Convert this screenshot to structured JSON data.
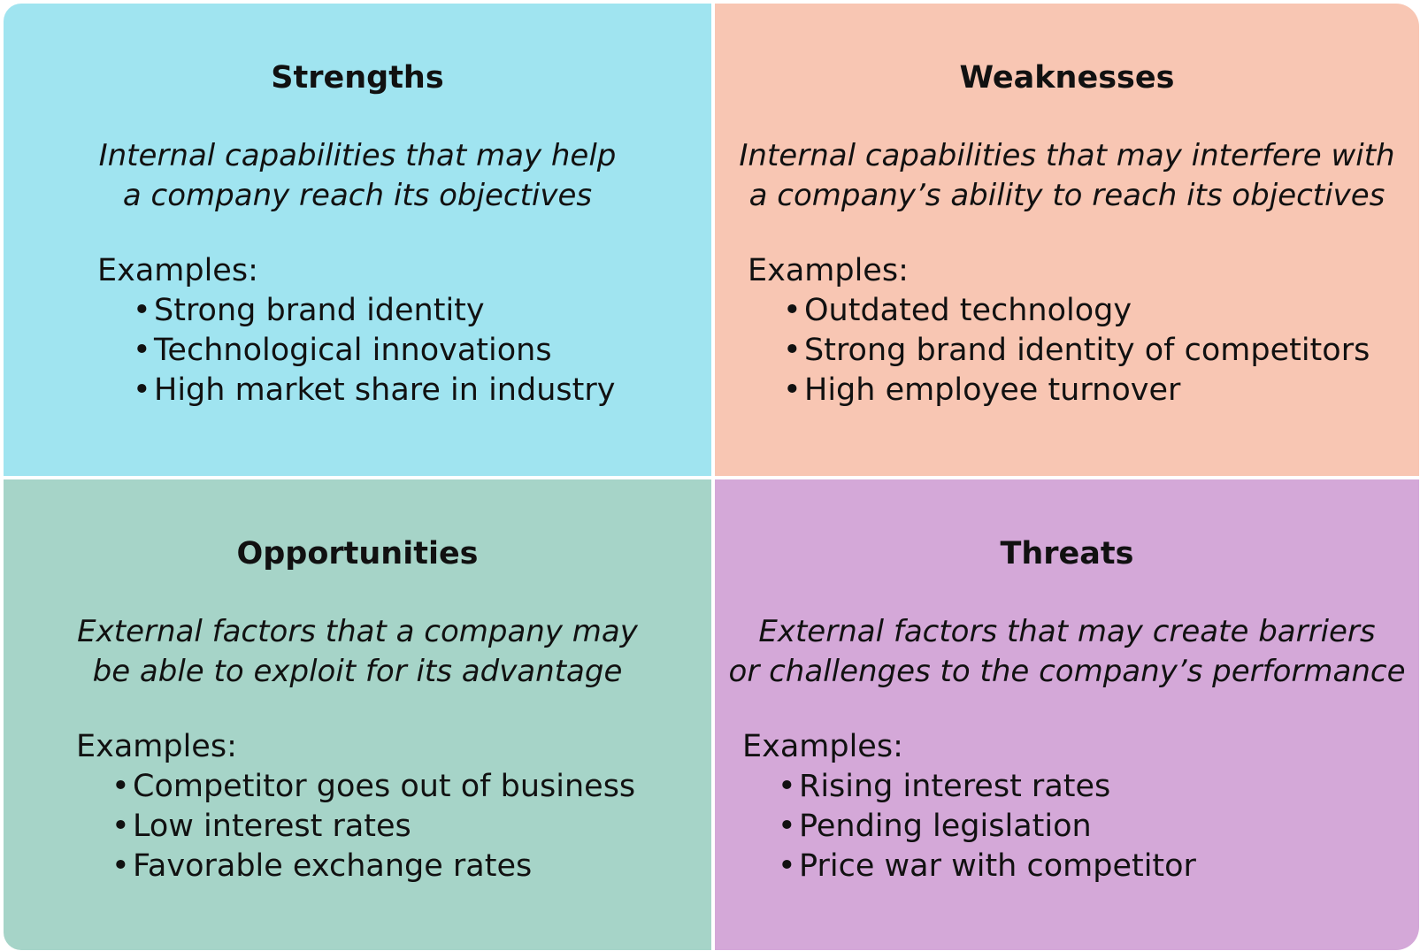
{
  "colors": {
    "strengths": "#a0e4f0",
    "weaknesses": "#f8c6b3",
    "opportunities": "#a6d4c8",
    "threats": "#d4a8d8"
  },
  "quadrants": [
    {
      "key": "strengths",
      "title": "Strengths",
      "description": [
        "Internal capabilities that may help",
        "a company reach its objectives"
      ],
      "examples_label": "Examples:",
      "examples": [
        "Strong brand identity",
        "Technological innovations",
        "High market share in industry"
      ]
    },
    {
      "key": "weaknesses",
      "title": "Weaknesses",
      "description": [
        "Internal capabilities that may interfere with",
        "a company’s ability to reach its objectives"
      ],
      "examples_label": "Examples:",
      "examples": [
        "Outdated technology",
        "Strong brand identity of competitors",
        "High employee turnover"
      ]
    },
    {
      "key": "opportunities",
      "title": "Opportunities",
      "description": [
        "External factors that a company may",
        "be able to exploit for its advantage"
      ],
      "examples_label": "Examples:",
      "examples": [
        "Competitor goes out of business",
        "Low interest rates",
        "Favorable exchange rates"
      ]
    },
    {
      "key": "threats",
      "title": "Threats",
      "description": [
        "External factors that may create barriers",
        "or challenges to the company’s performance"
      ],
      "examples_label": "Examples:",
      "examples": [
        "Rising interest rates",
        "Pending legislation",
        "Price war with competitor"
      ]
    }
  ],
  "bullet": "•"
}
